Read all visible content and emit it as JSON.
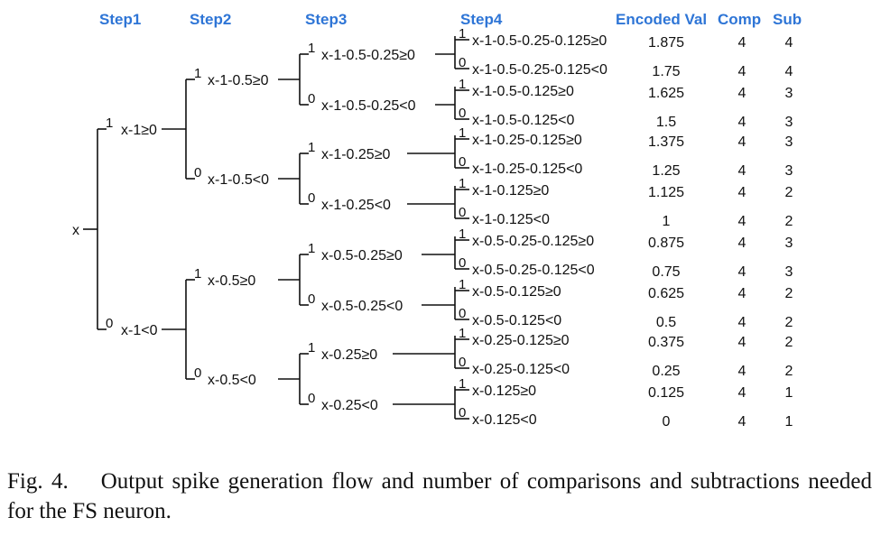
{
  "headers": {
    "step1": "Step1",
    "step2": "Step2",
    "step3": "Step3",
    "step4": "Step4",
    "encoded": "Encoded Val",
    "comp": "Comp",
    "sub": "Sub"
  },
  "tree": {
    "root": "x",
    "step1": [
      "x-1≥0",
      "x-1<0"
    ],
    "step2": [
      "x-1-0.5≥0",
      "x-1-0.5<0",
      "x-0.5≥0",
      "x-0.5<0"
    ],
    "step3": [
      "x-1-0.5-0.25≥0",
      "x-1-0.5-0.25<0",
      "x-1-0.25≥0",
      "x-1-0.25<0",
      "x-0.5-0.25≥0",
      "x-0.5-0.25<0",
      "x-0.25≥0",
      "x-0.25<0"
    ],
    "step4": [
      "x-1-0.5-0.25-0.125≥0",
      "x-1-0.5-0.25-0.125<0",
      "x-1-0.5-0.125≥0",
      "x-1-0.5-0.125<0",
      "x-1-0.25-0.125≥0",
      "x-1-0.25-0.125<0",
      "x-1-0.125≥0",
      "x-1-0.125<0",
      "x-0.5-0.25-0.125≥0",
      "x-0.5-0.25-0.125<0",
      "x-0.5-0.125≥0",
      "x-0.5-0.125<0",
      "x-0.25-0.125≥0",
      "x-0.25-0.125<0",
      "x-0.125≥0",
      "x-0.125<0"
    ],
    "bit_one": "1",
    "bit_zero": "0"
  },
  "rows": {
    "encoded": [
      "1.875",
      "1.75",
      "1.625",
      "1.5",
      "1.375",
      "1.25",
      "1.125",
      "1",
      "0.875",
      "0.75",
      "0.625",
      "0.5",
      "0.375",
      "0.25",
      "0.125",
      "0"
    ],
    "comp": [
      "4",
      "4",
      "4",
      "4",
      "4",
      "4",
      "4",
      "4",
      "4",
      "4",
      "4",
      "4",
      "4",
      "4",
      "4",
      "4"
    ],
    "sub": [
      "4",
      "4",
      "3",
      "3",
      "3",
      "3",
      "2",
      "2",
      "3",
      "3",
      "2",
      "2",
      "2",
      "2",
      "1",
      "1"
    ]
  },
  "caption": {
    "label": "Fig. 4.",
    "text": "Output spike generation flow and number of comparisons and subtractions needed for the FS neuron."
  }
}
